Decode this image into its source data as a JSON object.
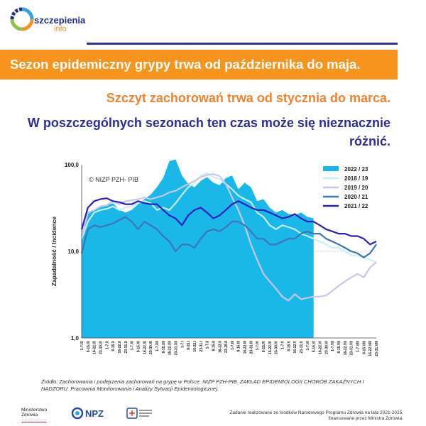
{
  "header": {
    "logo_name": "szczepienia",
    "logo_suffix": "info",
    "banner": "Sezon epidemiczny grypy trwa od października do maja.",
    "subtitle_orange": "Szczyt zachorowań trwa od stycznia do marca.",
    "subtitle_blue": "W poszczególnych sezonach ten czas może się nieznacznie różnić.",
    "accent_orange": "#f7941d",
    "accent_navy": "#2f2b9c"
  },
  "chart_data": {
    "type": "line",
    "watermark": "© NIZP PZH- PIB",
    "ylabel": "Zapadalność / Incidence",
    "yscale": "log",
    "ylim": [
      1,
      100
    ],
    "y_ticks": [
      "100,0",
      "10,0",
      "1,0"
    ],
    "x": [
      "1-7.IX",
      "8-15.IX",
      "16-22.IX",
      "23-30.IX",
      "1-7.X",
      "8-15.X",
      "16-22.X",
      "23-31.X",
      "1-7.XI",
      "8-15.XI",
      "16-22.XI",
      "23-30.XI",
      "1-7.XII",
      "8-15.XII",
      "16-22.XII",
      "23-31.XII",
      "1-7.I",
      "8-15.I",
      "16-22.I",
      "23-31.I",
      "1-7.II",
      "8-15.II",
      "16-22.II",
      "23-28.II",
      "1-7.III",
      "8-15.III",
      "16-22.III",
      "23-31.III",
      "1-7.IV",
      "8-15.IV",
      "16-22.IV",
      "23-30.IV",
      "1-7.V",
      "8-15.V",
      "16-22.V",
      "23-31.V",
      "1-7.VI",
      "8-15.VI",
      "16-22.VI",
      "23-30.VI",
      "1-7.VII",
      "8-15.VII",
      "16-22.VII",
      "23-31.VII",
      "1-7.VIII",
      "8-15.VIII",
      "16-22.VIII",
      "23-31.VIII"
    ],
    "legend_position": "top-right",
    "series": [
      {
        "name": "2022 / 23",
        "style": "area",
        "color": "#1ab8e8",
        "values": [
          17,
          27,
          30,
          33,
          34,
          36,
          30,
          28,
          30,
          35,
          40,
          45,
          55,
          70,
          110,
          115,
          75,
          60,
          55,
          65,
          72,
          62,
          58,
          70,
          75,
          52,
          62,
          55,
          38,
          40,
          32,
          28,
          30,
          27,
          26,
          28,
          25,
          24,
          null,
          null,
          null,
          null,
          null,
          null,
          null,
          null,
          null,
          null
        ]
      },
      {
        "name": "2018 / 19",
        "style": "line",
        "color": "#c8f0fb",
        "values": [
          14,
          22,
          28,
          30,
          31,
          33,
          30,
          32,
          33,
          36,
          38,
          36,
          30,
          32,
          30,
          36,
          45,
          55,
          62,
          75,
          80,
          72,
          68,
          60,
          52,
          44,
          40,
          37,
          28,
          25,
          20,
          18,
          20,
          19,
          18,
          16,
          15,
          14,
          13,
          12,
          11,
          11,
          10,
          9,
          9,
          8.5,
          8,
          7.5
        ]
      },
      {
        "name": "2019 / 20",
        "style": "line",
        "color": "#c9c6ec",
        "values": [
          15,
          28,
          30,
          33,
          34,
          38,
          35,
          38,
          39,
          40,
          42,
          40,
          42,
          44,
          48,
          50,
          55,
          60,
          65,
          72,
          76,
          78,
          74,
          60,
          42,
          30,
          20,
          12,
          8,
          5.5,
          4.5,
          3.7,
          3,
          2.7,
          3.2,
          2.8,
          2.9,
          3,
          3,
          3.1,
          3.5,
          4,
          4.5,
          5,
          5.5,
          5,
          6.5,
          7.5
        ]
      },
      {
        "name": "2020 / 21",
        "style": "line",
        "color": "#3f74b7",
        "values": [
          9.5,
          18,
          20,
          19,
          20,
          21,
          23,
          25,
          22,
          18,
          22,
          20,
          18,
          15,
          13,
          10,
          12,
          12,
          11,
          14,
          17,
          18,
          17,
          19,
          22,
          22,
          20,
          17,
          14,
          14,
          12,
          12,
          13,
          14,
          14,
          16,
          17,
          16,
          16,
          14,
          13,
          12,
          11,
          10,
          9.5,
          8.5,
          9.5,
          12
        ]
      },
      {
        "name": "2021 / 22",
        "style": "line",
        "color": "#2c1fbf",
        "values": [
          18,
          32,
          38,
          40,
          41,
          38,
          37,
          35,
          35,
          38,
          36,
          35,
          35,
          30,
          26,
          24,
          20,
          26,
          30,
          32,
          28,
          24,
          26,
          30,
          35,
          38,
          35,
          32,
          30,
          30,
          28,
          26,
          24,
          25,
          27,
          24,
          22,
          22,
          20,
          18,
          17,
          16,
          16,
          15,
          15,
          14,
          12,
          13
        ]
      }
    ]
  },
  "source": "Źródło: Zachorowania i podejrzenia zachorowań na grypę w Polsce. NIZP PZH-PIB. ZAKŁAD EPIDEMIOLOGII CHORÓB ZAKAŹNYCH I NADZORU. Pracownia Monitorowania i Analizy Sytuacji Epidemiologicznej.",
  "footer": {
    "ministry": "Ministerstwo Zdrowia",
    "npz": "NPZ",
    "note": "Zadanie realizowane ze środków Narodowego Programu Zdrowia na lata 2021-2025, finansowane przez Ministra Zdrowia."
  }
}
